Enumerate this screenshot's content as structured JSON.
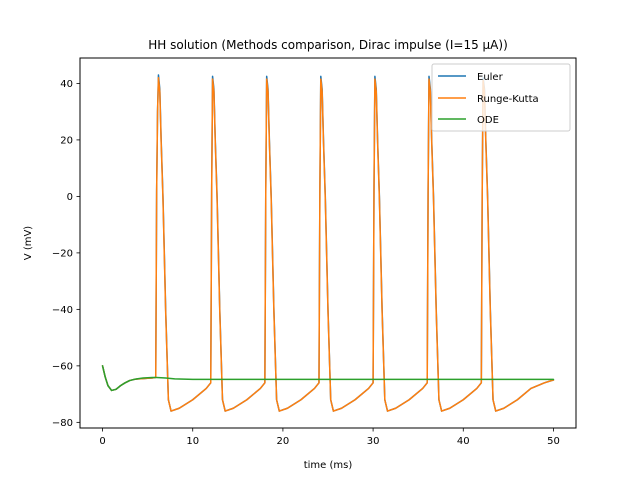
{
  "chart_data": {
    "type": "line",
    "title": "HH solution (Methods comparison, Dirac impulse (I=15 µA))",
    "xlabel": "time (ms)",
    "ylabel": "V (mV)",
    "xlim": [
      -2.5,
      52.5
    ],
    "ylim": [
      -82,
      49
    ],
    "xticks": [
      0,
      10,
      20,
      30,
      40,
      50
    ],
    "xtick_labels": [
      "0",
      "10",
      "20",
      "30",
      "40",
      "50"
    ],
    "yticks": [
      -80,
      -60,
      -40,
      -20,
      0,
      20,
      40
    ],
    "ytick_labels": [
      "−80",
      "−60",
      "−40",
      "−20",
      "0",
      "20",
      "40"
    ],
    "grid": false,
    "legend_position": "top-right",
    "series": [
      {
        "name": "Euler",
        "color": "#1f77b4",
        "x": [
          0,
          0.3,
          0.6,
          1.0,
          1.5,
          2.0,
          2.5,
          3.0,
          3.5,
          4.0,
          4.5,
          5.0,
          5.5,
          5.9,
          6.0,
          6.1,
          6.2,
          6.35,
          6.5,
          6.7,
          7.0,
          7.3,
          7.6,
          8.5,
          10.0,
          11.5,
          12.0,
          12.1,
          12.2,
          12.35,
          12.5,
          12.7,
          13.0,
          13.3,
          13.6,
          14.5,
          16.0,
          17.5,
          18.0,
          18.1,
          18.2,
          18.35,
          18.5,
          18.7,
          19.0,
          19.3,
          19.6,
          20.5,
          22.0,
          23.5,
          24.0,
          24.1,
          24.2,
          24.35,
          24.5,
          24.7,
          25.0,
          25.3,
          25.6,
          26.5,
          28.0,
          29.5,
          30.0,
          30.1,
          30.2,
          30.35,
          30.5,
          30.7,
          31.0,
          31.3,
          31.6,
          32.5,
          34.0,
          35.5,
          36.0,
          36.1,
          36.2,
          36.35,
          36.5,
          36.7,
          37.0,
          37.3,
          37.6,
          38.5,
          40.0,
          41.5,
          42.0,
          42.1,
          42.2,
          42.35,
          42.5,
          42.7,
          43.0,
          43.3,
          43.6,
          44.5,
          46.0,
          47.5,
          49.0,
          50.0
        ],
        "values": [
          -60,
          -64,
          -67,
          -68.7,
          -68.3,
          -67,
          -66,
          -65.2,
          -64.8,
          -64.6,
          -64.5,
          -64.4,
          -64.3,
          -64.1,
          2,
          30,
          43,
          38,
          20,
          0,
          -40,
          -72,
          -76,
          -75,
          -72,
          -68,
          -66,
          2,
          42.5,
          38,
          20,
          0,
          -40,
          -72,
          -76,
          -75,
          -72,
          -68,
          -66,
          2,
          42.5,
          38,
          20,
          0,
          -40,
          -72,
          -76,
          -75,
          -72,
          -68,
          -66,
          2,
          42.5,
          38,
          20,
          0,
          -40,
          -72,
          -76,
          -75,
          -72,
          -68,
          -66,
          2,
          42.5,
          38,
          20,
          0,
          -40,
          -72,
          -76,
          -75,
          -72,
          -68,
          -66,
          2,
          42.5,
          38,
          20,
          0,
          -40,
          -72,
          -76,
          -75,
          -72,
          -68,
          -66,
          2,
          42,
          38,
          20,
          0,
          -40,
          -72,
          -76,
          -75,
          -72,
          -68,
          -66,
          -65
        ]
      },
      {
        "name": "Runge-Kutta",
        "color": "#ff7f0e",
        "x": [
          0,
          0.3,
          0.6,
          1.0,
          1.5,
          2.0,
          2.5,
          3.0,
          3.5,
          4.0,
          4.5,
          5.0,
          5.5,
          5.9,
          6.0,
          6.1,
          6.2,
          6.35,
          6.5,
          6.7,
          7.0,
          7.3,
          7.6,
          8.5,
          10.0,
          11.5,
          12.0,
          12.1,
          12.2,
          12.35,
          12.5,
          12.7,
          13.0,
          13.3,
          13.6,
          14.5,
          16.0,
          17.5,
          18.0,
          18.1,
          18.2,
          18.35,
          18.5,
          18.7,
          19.0,
          19.3,
          19.6,
          20.5,
          22.0,
          23.5,
          24.0,
          24.1,
          24.2,
          24.35,
          24.5,
          24.7,
          25.0,
          25.3,
          25.6,
          26.5,
          28.0,
          29.5,
          30.0,
          30.1,
          30.2,
          30.35,
          30.5,
          30.7,
          31.0,
          31.3,
          31.6,
          32.5,
          34.0,
          35.5,
          36.0,
          36.1,
          36.2,
          36.35,
          36.5,
          36.7,
          37.0,
          37.3,
          37.6,
          38.5,
          40.0,
          41.5,
          42.0,
          42.1,
          42.2,
          42.35,
          42.5,
          42.7,
          43.0,
          43.3,
          43.6,
          44.5,
          46.0,
          47.5,
          49.0,
          50.0
        ],
        "values": [
          -60,
          -64,
          -67,
          -68.7,
          -68.3,
          -67,
          -66,
          -65.2,
          -64.8,
          -64.6,
          -64.5,
          -64.4,
          -64.3,
          -64.1,
          2,
          30,
          42,
          37,
          19,
          -1,
          -41,
          -72,
          -76,
          -75,
          -72,
          -68,
          -66,
          2,
          41.5,
          37,
          19,
          -1,
          -41,
          -72,
          -76,
          -75,
          -72,
          -68,
          -66,
          2,
          41.5,
          37,
          19,
          -1,
          -41,
          -72,
          -76,
          -75,
          -72,
          -68,
          -66,
          2,
          41.5,
          37,
          19,
          -1,
          -41,
          -72,
          -76,
          -75,
          -72,
          -68,
          -66,
          2,
          41.5,
          37,
          19,
          -1,
          -41,
          -72,
          -76,
          -75,
          -72,
          -68,
          -66,
          2,
          41.5,
          37,
          19,
          -1,
          -41,
          -72,
          -76,
          -75,
          -72,
          -68,
          -66,
          2,
          41,
          37,
          19,
          -1,
          -41,
          -72,
          -76,
          -75,
          -72,
          -68,
          -66,
          -65
        ]
      },
      {
        "name": "ODE",
        "color": "#2ca02c",
        "x": [
          0,
          0.3,
          0.6,
          1.0,
          1.5,
          2.0,
          2.5,
          3.0,
          3.5,
          4.0,
          4.5,
          5.0,
          5.5,
          6.0,
          6.5,
          7.0,
          8.0,
          10.0,
          15.0,
          20.0,
          30.0,
          40.0,
          50.0
        ],
        "values": [
          -60,
          -64,
          -67,
          -68.7,
          -68.3,
          -67,
          -66,
          -65.2,
          -64.8,
          -64.5,
          -64.3,
          -64.2,
          -64.1,
          -64.1,
          -64.2,
          -64.3,
          -64.6,
          -64.8,
          -64.8,
          -64.8,
          -64.8,
          -64.8,
          -64.8
        ]
      }
    ]
  }
}
